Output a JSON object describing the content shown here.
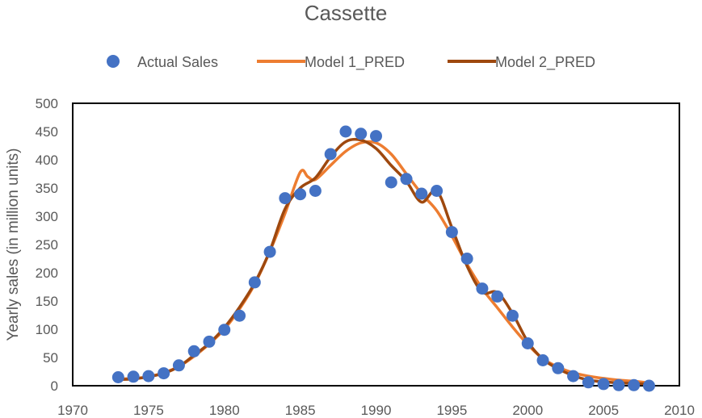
{
  "chart_data": {
    "type": "scatter",
    "title": "Cassette",
    "xlabel": "",
    "ylabel": "Yearly sales (in million units)",
    "xlim": [
      1970,
      2010
    ],
    "ylim": [
      0,
      500
    ],
    "xticks": [
      1970,
      1975,
      1980,
      1985,
      1990,
      1995,
      2000,
      2005,
      2010
    ],
    "yticks": [
      0,
      50,
      100,
      150,
      200,
      250,
      300,
      350,
      400,
      450,
      500
    ],
    "grid": false,
    "legend_position": "top",
    "series": [
      {
        "name": "Actual Sales",
        "kind": "scatter",
        "color": "#4472C4",
        "x": [
          1973,
          1974,
          1975,
          1976,
          1977,
          1978,
          1979,
          1980,
          1981,
          1982,
          1983,
          1984,
          1985,
          1986,
          1987,
          1988,
          1989,
          1990,
          1991,
          1992,
          1993,
          1994,
          1995,
          1996,
          1997,
          1998,
          1999,
          2000,
          2001,
          2002,
          2003,
          2004,
          2005,
          2006,
          2007,
          2008
        ],
        "y": [
          15,
          16,
          17,
          22,
          36,
          61,
          78,
          99,
          124,
          183,
          237,
          332,
          339,
          345,
          410,
          450,
          446,
          442,
          360,
          366,
          340,
          345,
          272,
          225,
          172,
          158,
          124,
          75,
          45,
          31,
          17,
          6,
          3,
          1,
          1,
          0
        ]
      },
      {
        "name": "Model 1_PRED",
        "kind": "line",
        "color": "#ED7D31",
        "x": [
          1973,
          1974,
          1975,
          1976,
          1977,
          1978,
          1979,
          1980,
          1981,
          1982,
          1983,
          1984,
          1985,
          1985.5,
          1986,
          1987,
          1988,
          1989,
          1990,
          1991,
          1992,
          1993,
          1994,
          1995,
          1996,
          1997,
          1998,
          1999,
          2000,
          2001,
          2002,
          2003,
          2004,
          2005,
          2006,
          2007,
          2008
        ],
        "y": [
          12,
          13,
          16,
          23,
          34,
          52,
          74,
          100,
          136,
          180,
          238,
          305,
          378,
          370,
          365,
          390,
          415,
          430,
          430,
          410,
          375,
          340,
          310,
          265,
          215,
          172,
          138,
          104,
          73,
          48,
          33,
          23,
          17,
          13,
          10,
          8,
          5
        ]
      },
      {
        "name": "Model 2_PRED",
        "kind": "line",
        "color": "#9E480E",
        "x": [
          1973,
          1974,
          1975,
          1976,
          1977,
          1978,
          1979,
          1980,
          1981,
          1982,
          1983,
          1984,
          1985,
          1986,
          1987,
          1988,
          1989,
          1990,
          1991,
          1992,
          1993,
          1994,
          1995,
          1996,
          1997,
          1998,
          1999,
          2000,
          2001,
          2002,
          2003,
          2004,
          2005,
          2006,
          2007,
          2008
        ],
        "y": [
          11,
          12,
          16,
          22,
          34,
          54,
          75,
          103,
          139,
          182,
          239,
          313,
          350,
          368,
          405,
          432,
          435,
          420,
          390,
          362,
          325,
          345,
          280,
          212,
          166,
          165,
          128,
          78,
          47,
          30,
          18,
          10,
          7,
          5,
          4,
          3
        ]
      }
    ]
  }
}
